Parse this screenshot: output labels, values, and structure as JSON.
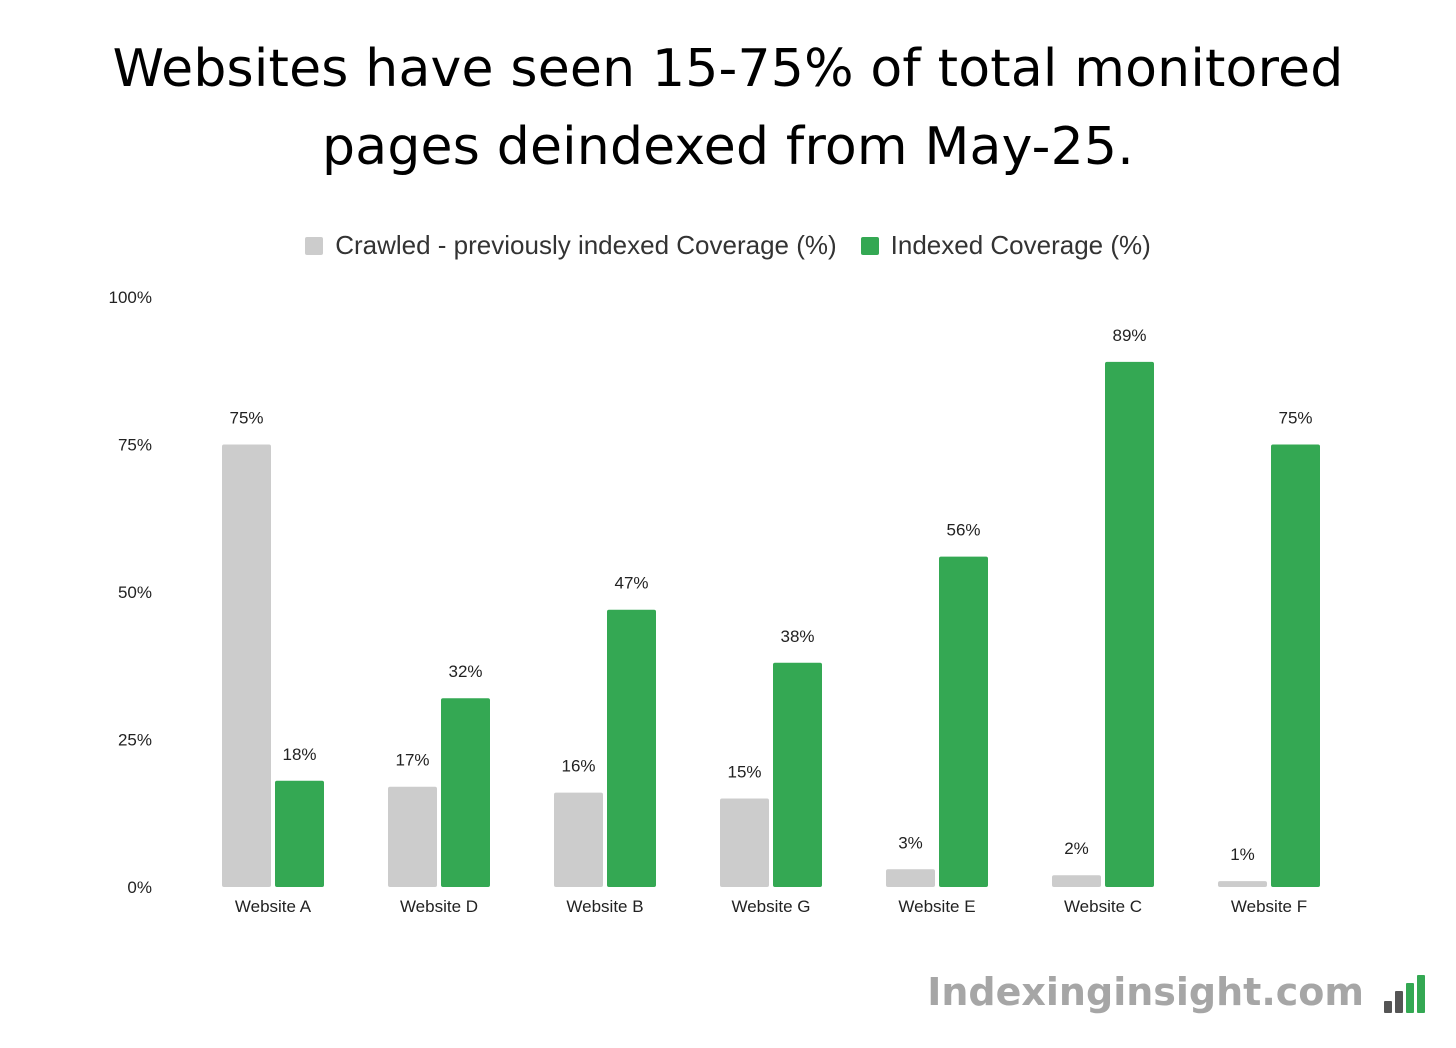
{
  "headline": {
    "line1": "Websites have seen 15-75% of total monitored",
    "line2": "pages deindexed from May-25."
  },
  "brand": {
    "text": "Indexinginsight.com"
  },
  "colors": {
    "crawled": "#cccccc",
    "indexed": "#34a853",
    "text": "#222222",
    "brand_gray": "#a6a6a6"
  },
  "chart_data": {
    "type": "bar",
    "categories": [
      "Website A",
      "Website D",
      "Website B",
      "Website G",
      "Website E",
      "Website C",
      "Website F"
    ],
    "series": [
      {
        "name": "Crawled - previously indexed Coverage (%)",
        "values": [
          75,
          17,
          16,
          15,
          3,
          2,
          1
        ],
        "labels": [
          "75%",
          "17%",
          "16%",
          "15%",
          "3%",
          "2%",
          "1%"
        ]
      },
      {
        "name": "Indexed Coverage (%)",
        "values": [
          18,
          32,
          47,
          38,
          56,
          89,
          75
        ],
        "labels": [
          "18%",
          "32%",
          "47%",
          "38%",
          "56%",
          "89%",
          "75%"
        ]
      }
    ],
    "ylim": [
      0,
      100
    ],
    "yticks": [
      0,
      25,
      50,
      75,
      100
    ],
    "ytick_labels": [
      "0%",
      "25%",
      "50%",
      "75%",
      "100%"
    ],
    "grid": false,
    "legend_position": "top-center"
  }
}
